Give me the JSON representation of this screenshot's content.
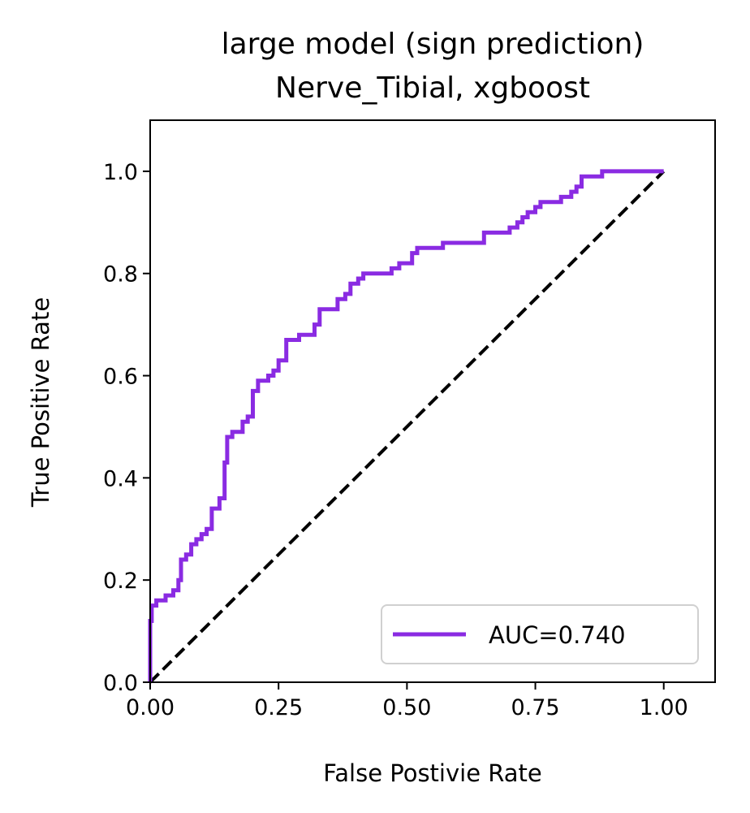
{
  "chart_data": {
    "type": "line",
    "title_line1": "large model (sign prediction)",
    "title_line2": "Nerve_Tibial, xgboost",
    "xlabel": "False Postivie Rate",
    "ylabel": "True Positive Rate",
    "xlim": [
      0,
      1.1
    ],
    "ylim": [
      0,
      1.1
    ],
    "xticks": [
      "0.00",
      "0.25",
      "0.50",
      "0.75",
      "1.00"
    ],
    "yticks": [
      "0.0",
      "0.2",
      "0.4",
      "0.6",
      "0.8",
      "1.0"
    ],
    "grid": false,
    "legend_position": "lower-right",
    "series": [
      {
        "name": "AUC=0.740",
        "color": "#8a2be2",
        "points": [
          [
            0.0,
            0.0
          ],
          [
            0.0,
            0.12
          ],
          [
            0.003,
            0.12
          ],
          [
            0.003,
            0.15
          ],
          [
            0.012,
            0.15
          ],
          [
            0.012,
            0.16
          ],
          [
            0.03,
            0.16
          ],
          [
            0.03,
            0.17
          ],
          [
            0.045,
            0.17
          ],
          [
            0.045,
            0.18
          ],
          [
            0.055,
            0.18
          ],
          [
            0.055,
            0.2
          ],
          [
            0.06,
            0.2
          ],
          [
            0.06,
            0.24
          ],
          [
            0.07,
            0.24
          ],
          [
            0.07,
            0.25
          ],
          [
            0.08,
            0.25
          ],
          [
            0.08,
            0.27
          ],
          [
            0.09,
            0.27
          ],
          [
            0.09,
            0.28
          ],
          [
            0.1,
            0.28
          ],
          [
            0.1,
            0.29
          ],
          [
            0.11,
            0.29
          ],
          [
            0.11,
            0.3
          ],
          [
            0.12,
            0.3
          ],
          [
            0.12,
            0.34
          ],
          [
            0.135,
            0.34
          ],
          [
            0.135,
            0.36
          ],
          [
            0.145,
            0.36
          ],
          [
            0.145,
            0.43
          ],
          [
            0.15,
            0.43
          ],
          [
            0.15,
            0.48
          ],
          [
            0.16,
            0.48
          ],
          [
            0.16,
            0.49
          ],
          [
            0.18,
            0.49
          ],
          [
            0.18,
            0.51
          ],
          [
            0.19,
            0.51
          ],
          [
            0.19,
            0.52
          ],
          [
            0.2,
            0.52
          ],
          [
            0.2,
            0.57
          ],
          [
            0.21,
            0.57
          ],
          [
            0.21,
            0.59
          ],
          [
            0.23,
            0.59
          ],
          [
            0.23,
            0.6
          ],
          [
            0.24,
            0.6
          ],
          [
            0.24,
            0.61
          ],
          [
            0.25,
            0.61
          ],
          [
            0.25,
            0.63
          ],
          [
            0.265,
            0.63
          ],
          [
            0.265,
            0.67
          ],
          [
            0.29,
            0.67
          ],
          [
            0.29,
            0.68
          ],
          [
            0.32,
            0.68
          ],
          [
            0.32,
            0.7
          ],
          [
            0.33,
            0.7
          ],
          [
            0.33,
            0.73
          ],
          [
            0.365,
            0.73
          ],
          [
            0.365,
            0.75
          ],
          [
            0.38,
            0.75
          ],
          [
            0.38,
            0.76
          ],
          [
            0.39,
            0.76
          ],
          [
            0.39,
            0.78
          ],
          [
            0.405,
            0.78
          ],
          [
            0.405,
            0.79
          ],
          [
            0.415,
            0.79
          ],
          [
            0.415,
            0.8
          ],
          [
            0.47,
            0.8
          ],
          [
            0.47,
            0.81
          ],
          [
            0.485,
            0.81
          ],
          [
            0.485,
            0.82
          ],
          [
            0.51,
            0.82
          ],
          [
            0.51,
            0.84
          ],
          [
            0.52,
            0.84
          ],
          [
            0.52,
            0.85
          ],
          [
            0.57,
            0.85
          ],
          [
            0.57,
            0.86
          ],
          [
            0.65,
            0.86
          ],
          [
            0.65,
            0.88
          ],
          [
            0.7,
            0.88
          ],
          [
            0.7,
            0.89
          ],
          [
            0.715,
            0.89
          ],
          [
            0.715,
            0.9
          ],
          [
            0.725,
            0.9
          ],
          [
            0.725,
            0.91
          ],
          [
            0.735,
            0.91
          ],
          [
            0.735,
            0.92
          ],
          [
            0.75,
            0.92
          ],
          [
            0.75,
            0.93
          ],
          [
            0.76,
            0.93
          ],
          [
            0.76,
            0.94
          ],
          [
            0.8,
            0.94
          ],
          [
            0.8,
            0.95
          ],
          [
            0.82,
            0.95
          ],
          [
            0.82,
            0.96
          ],
          [
            0.83,
            0.96
          ],
          [
            0.83,
            0.97
          ],
          [
            0.84,
            0.97
          ],
          [
            0.84,
            0.99
          ],
          [
            0.88,
            0.99
          ],
          [
            0.88,
            1.0
          ],
          [
            1.0,
            1.0
          ]
        ]
      },
      {
        "name": "",
        "color": "#000000",
        "dashed": true,
        "points": [
          [
            0,
            0
          ],
          [
            1,
            1
          ]
        ]
      }
    ]
  }
}
